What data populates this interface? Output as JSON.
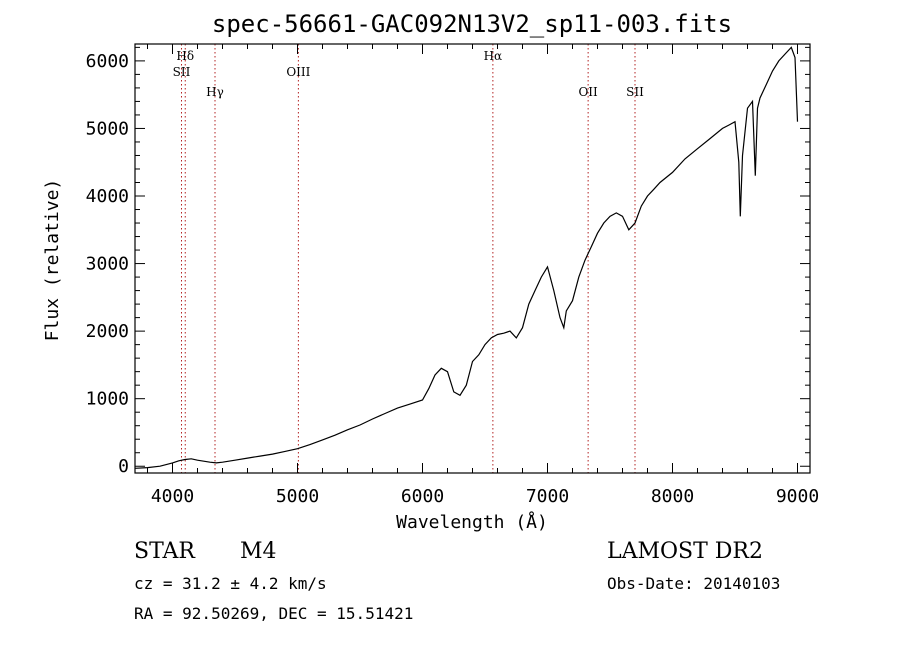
{
  "chart_data": {
    "type": "line",
    "title": "spec-56661-GAC092N13V2_sp11-003.fits",
    "xlabel": "Wavelength (Å)",
    "ylabel": "Flux (relative)",
    "xlim": [
      3700,
      9100
    ],
    "ylim": [
      -100,
      6250
    ],
    "xticks": [
      4000,
      5000,
      6000,
      7000,
      8000,
      9000
    ],
    "yticks": [
      0,
      1000,
      2000,
      3000,
      4000,
      5000,
      6000
    ],
    "spectral_lines": [
      {
        "label": "Hδ",
        "wavelength": 4102
      },
      {
        "label": "SII",
        "wavelength": 4072
      },
      {
        "label": "Hγ",
        "wavelength": 4340
      },
      {
        "label": "OIII",
        "wavelength": 5007
      },
      {
        "label": "Hα",
        "wavelength": 6563
      },
      {
        "label": "OII",
        "wavelength": 7325
      },
      {
        "label": "SII",
        "wavelength": 7700
      }
    ],
    "series": [
      {
        "x": [
          3700,
          3800,
          3900,
          4000,
          4050,
          4100,
          4150,
          4200,
          4300,
          4350,
          4400,
          4500,
          4600,
          4700,
          4800,
          4900,
          5000,
          5100,
          5200,
          5300,
          5400,
          5500,
          5600,
          5700,
          5800,
          5900,
          6000,
          6050,
          6100,
          6150,
          6200,
          6250,
          6300,
          6350,
          6400,
          6450,
          6500,
          6550,
          6600,
          6650,
          6700,
          6750,
          6800,
          6850,
          6900,
          6950,
          7000,
          7050,
          7100,
          7130,
          7150,
          7200,
          7250,
          7300,
          7350,
          7400,
          7450,
          7500,
          7550,
          7600,
          7650,
          7700,
          7750,
          7800,
          7850,
          7900,
          8000,
          8100,
          8200,
          8300,
          8400,
          8450,
          8500,
          8530,
          8542,
          8560,
          8600,
          8640,
          8662,
          8680,
          8700,
          8750,
          8800,
          8850,
          8900,
          8950,
          8980,
          9000
        ],
        "y": [
          -30,
          -20,
          0,
          50,
          80,
          100,
          110,
          90,
          60,
          50,
          60,
          90,
          120,
          150,
          180,
          220,
          260,
          320,
          390,
          460,
          540,
          610,
          700,
          780,
          860,
          920,
          980,
          1150,
          1350,
          1450,
          1400,
          1100,
          1050,
          1200,
          1550,
          1650,
          1800,
          1900,
          1950,
          1970,
          2000,
          1900,
          2050,
          2400,
          2600,
          2800,
          2950,
          2600,
          2200,
          2050,
          2300,
          2450,
          2800,
          3050,
          3250,
          3450,
          3600,
          3700,
          3750,
          3700,
          3500,
          3600,
          3850,
          4000,
          4100,
          4200,
          4350,
          4550,
          4700,
          4850,
          5000,
          5050,
          5100,
          4500,
          3700,
          4600,
          5300,
          5400,
          4300,
          5300,
          5450,
          5650,
          5850,
          6000,
          6100,
          6200,
          6050,
          5100
        ]
      }
    ]
  },
  "info": {
    "class_label": "STAR",
    "subclass": "M4",
    "survey": "LAMOST DR2",
    "cz": "cz = 31.2 ± 4.2 km/s",
    "obs_date": "Obs-Date: 20140103",
    "radec": "RA =  92.50269, DEC =  15.51421"
  }
}
